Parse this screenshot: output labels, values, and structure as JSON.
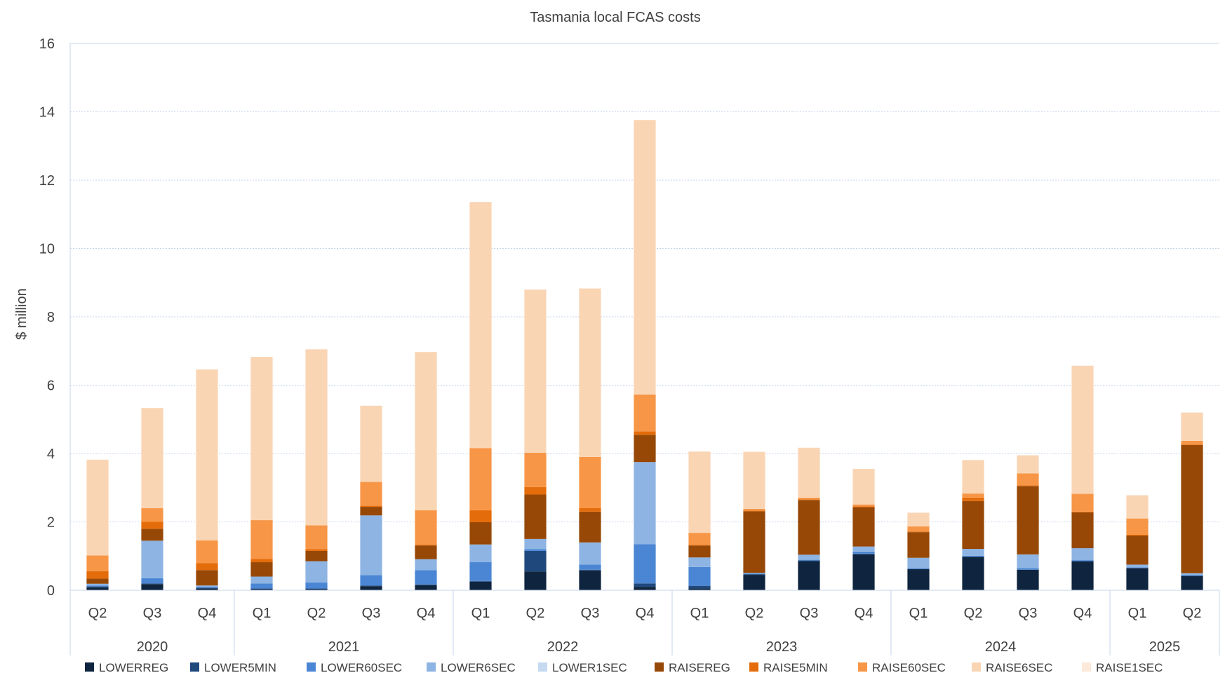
{
  "chart_data": {
    "type": "bar",
    "stacked": true,
    "title": "Tasmania local FCAS costs",
    "ylabel": "$ million",
    "xlabel": "",
    "ylim": [
      0,
      16
    ],
    "yticks": [
      0,
      2,
      4,
      6,
      8,
      10,
      12,
      14,
      16
    ],
    "grid": true,
    "legend_position": "bottom",
    "categories": [
      "Q2",
      "Q3",
      "Q4",
      "Q1",
      "Q2",
      "Q3",
      "Q4",
      "Q1",
      "Q2",
      "Q3",
      "Q4",
      "Q1",
      "Q2",
      "Q3",
      "Q4",
      "Q1",
      "Q2",
      "Q3",
      "Q4",
      "Q1",
      "Q2"
    ],
    "year_groups": [
      {
        "label": "2020",
        "count": 3
      },
      {
        "label": "2021",
        "count": 4
      },
      {
        "label": "2022",
        "count": 4
      },
      {
        "label": "2023",
        "count": 4
      },
      {
        "label": "2024",
        "count": 4
      },
      {
        "label": "2025",
        "count": 2
      }
    ],
    "series": [
      {
        "name": "LOWERREG",
        "color": "#0f243e",
        "values": [
          0.08,
          0.18,
          0.05,
          0.03,
          0.03,
          0.12,
          0.15,
          0.25,
          0.55,
          0.58,
          0.1,
          0.05,
          0.45,
          0.85,
          1.05,
          0.62,
          0.98,
          0.6,
          0.85,
          0.65,
          0.42
        ]
      },
      {
        "name": "LOWER5MIN",
        "color": "#1f497d",
        "values": [
          0.03,
          0.02,
          0.02,
          0.02,
          0.02,
          0.02,
          0.02,
          0.02,
          0.6,
          0.02,
          0.1,
          0.08,
          0.02,
          0.02,
          0.02,
          0.0,
          0.0,
          0.0,
          0.0,
          0.0,
          0.0
        ]
      },
      {
        "name": "LOWER60SEC",
        "color": "#4a86d4",
        "values": [
          0.03,
          0.15,
          0.03,
          0.15,
          0.18,
          0.3,
          0.42,
          0.55,
          0.05,
          0.15,
          1.15,
          0.55,
          0.02,
          0.02,
          0.06,
          0.03,
          0.03,
          0.05,
          0.03,
          0.02,
          0.02
        ]
      },
      {
        "name": "LOWER6SEC",
        "color": "#8eb4e3",
        "values": [
          0.05,
          1.1,
          0.04,
          0.2,
          0.62,
          1.75,
          0.32,
          0.52,
          0.3,
          0.65,
          2.4,
          0.28,
          0.02,
          0.15,
          0.15,
          0.3,
          0.2,
          0.4,
          0.35,
          0.08,
          0.06
        ]
      },
      {
        "name": "LOWER1SEC",
        "color": "#c5d9f1",
        "values": [
          0.0,
          0.0,
          0.0,
          0.0,
          0.0,
          0.0,
          0.0,
          0.0,
          0.0,
          0.0,
          0.0,
          0.0,
          0.0,
          0.0,
          0.0,
          0.0,
          0.0,
          0.0,
          0.0,
          0.0,
          0.0
        ]
      },
      {
        "name": "RAISEREG",
        "color": "#974806",
        "values": [
          0.15,
          0.35,
          0.45,
          0.42,
          0.3,
          0.25,
          0.4,
          0.65,
          1.3,
          0.9,
          0.8,
          0.35,
          1.8,
          1.6,
          1.15,
          0.75,
          1.4,
          2.0,
          1.05,
          0.85,
          3.75
        ]
      },
      {
        "name": "RAISE5MIN",
        "color": "#e46c0a",
        "values": [
          0.22,
          0.2,
          0.2,
          0.1,
          0.05,
          0.03,
          0.03,
          0.35,
          0.22,
          0.1,
          0.1,
          0.02,
          0.02,
          0.02,
          0.02,
          0.02,
          0.1,
          0.02,
          0.02,
          0.02,
          0.02
        ]
      },
      {
        "name": "RAISE60SEC",
        "color": "#f79646",
        "values": [
          0.46,
          0.4,
          0.67,
          1.13,
          0.7,
          0.7,
          1.0,
          1.82,
          1.0,
          1.5,
          1.08,
          0.35,
          0.05,
          0.05,
          0.06,
          0.15,
          0.12,
          0.35,
          0.52,
          0.48,
          0.1
        ]
      },
      {
        "name": "RAISE6SEC",
        "color": "#fad5b4",
        "values": [
          2.8,
          2.93,
          5.0,
          4.78,
          5.15,
          2.23,
          4.63,
          7.2,
          4.78,
          4.93,
          8.03,
          2.38,
          1.67,
          1.46,
          1.04,
          0.4,
          0.98,
          0.53,
          3.75,
          0.68,
          0.83
        ]
      },
      {
        "name": "RAISE1SEC",
        "color": "#fde9d9",
        "values": [
          0.0,
          0.0,
          0.0,
          0.0,
          0.0,
          0.0,
          0.0,
          0.0,
          0.0,
          0.0,
          0.0,
          0.0,
          0.0,
          0.0,
          0.0,
          0.0,
          0.0,
          0.0,
          0.0,
          0.0,
          0.0
        ]
      }
    ]
  }
}
